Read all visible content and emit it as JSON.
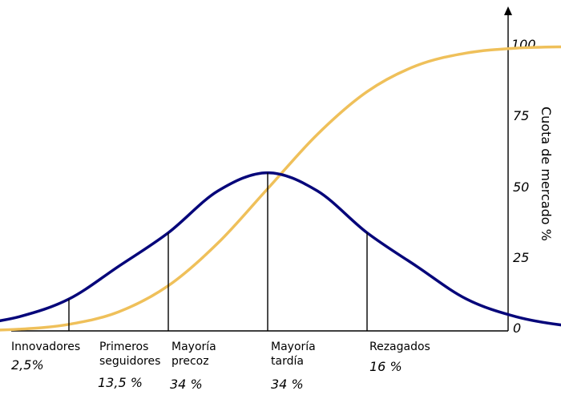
{
  "chart_data": {
    "type": "line",
    "ylabel": "Cuota de mercado %",
    "yticks": [
      "0",
      "25",
      "50",
      "75",
      "100"
    ],
    "ylim": [
      0,
      100
    ],
    "series": [
      {
        "kind": "bell-curve",
        "color": "#06067a",
        "x": [
          -3,
          -2.5,
          -2,
          -1.5,
          -1,
          -0.5,
          0,
          0.5,
          1,
          1.5,
          2,
          2.5,
          3,
          3.5
        ],
        "values": [
          1.9,
          5.0,
          11.2,
          22.7,
          34.5,
          49.2,
          55.6,
          49.2,
          34.5,
          22.7,
          11.2,
          5.0,
          1.9,
          0.8
        ]
      },
      {
        "kind": "cumulative-curve",
        "color": "#efc05a",
        "x": [
          -3,
          -2.5,
          -2,
          -1.5,
          -1,
          -0.5,
          0,
          0.5,
          1,
          1.5,
          2,
          2.5,
          3,
          3.5
        ],
        "values": [
          0.1,
          0.6,
          2.3,
          6.7,
          15.9,
          30.9,
          50,
          69.1,
          84.1,
          93.3,
          97.7,
          99.4,
          99.9,
          100
        ]
      }
    ],
    "segments": [
      {
        "label": "Innovadores",
        "share": "2,5%"
      },
      {
        "label": "Primeros seguidores",
        "label_lines": [
          "Primeros",
          "seguidores"
        ],
        "share": "13,5 %"
      },
      {
        "label": "Mayoría precoz",
        "label_lines": [
          "Mayoría",
          "precoz"
        ],
        "share": "34 %"
      },
      {
        "label": "Mayoría tardía",
        "label_lines": [
          "Mayoría",
          "tardía"
        ],
        "share": "34 %"
      },
      {
        "label": "Rezagados",
        "share": "16 %"
      }
    ],
    "dividers_x": [
      -2,
      -1,
      0,
      1
    ]
  }
}
